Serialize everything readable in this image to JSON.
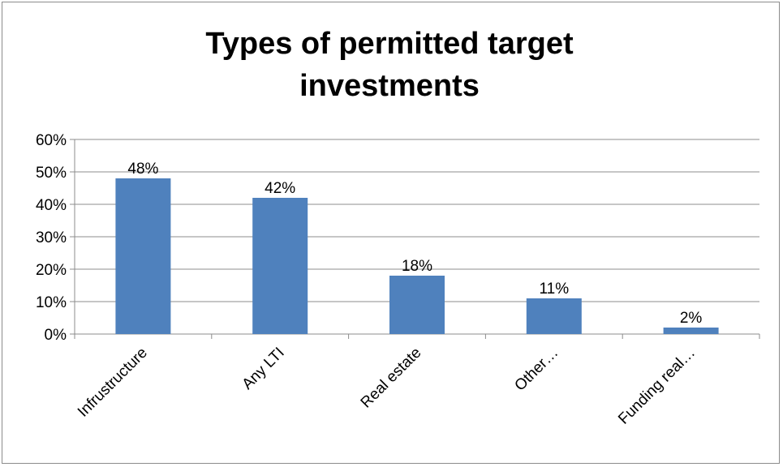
{
  "chart_data": {
    "type": "bar",
    "title": "Types of permitted target investments",
    "xlabel": "",
    "ylabel": "",
    "categories": [
      "Infrustructure",
      "Any LTI",
      "Real estate",
      "Other…",
      "Funding real…"
    ],
    "values": [
      48,
      42,
      18,
      11,
      2
    ],
    "data_labels": [
      "48%",
      "42%",
      "18%",
      "11%",
      "2%"
    ],
    "ylim": [
      0,
      60
    ],
    "y_ticks": [
      0,
      10,
      20,
      30,
      40,
      50,
      60
    ],
    "y_tick_labels": [
      "0%",
      "10%",
      "20%",
      "30%",
      "40%",
      "50%",
      "60%"
    ],
    "grid": true,
    "legend": "none",
    "bar_color": "#4f81bd"
  }
}
